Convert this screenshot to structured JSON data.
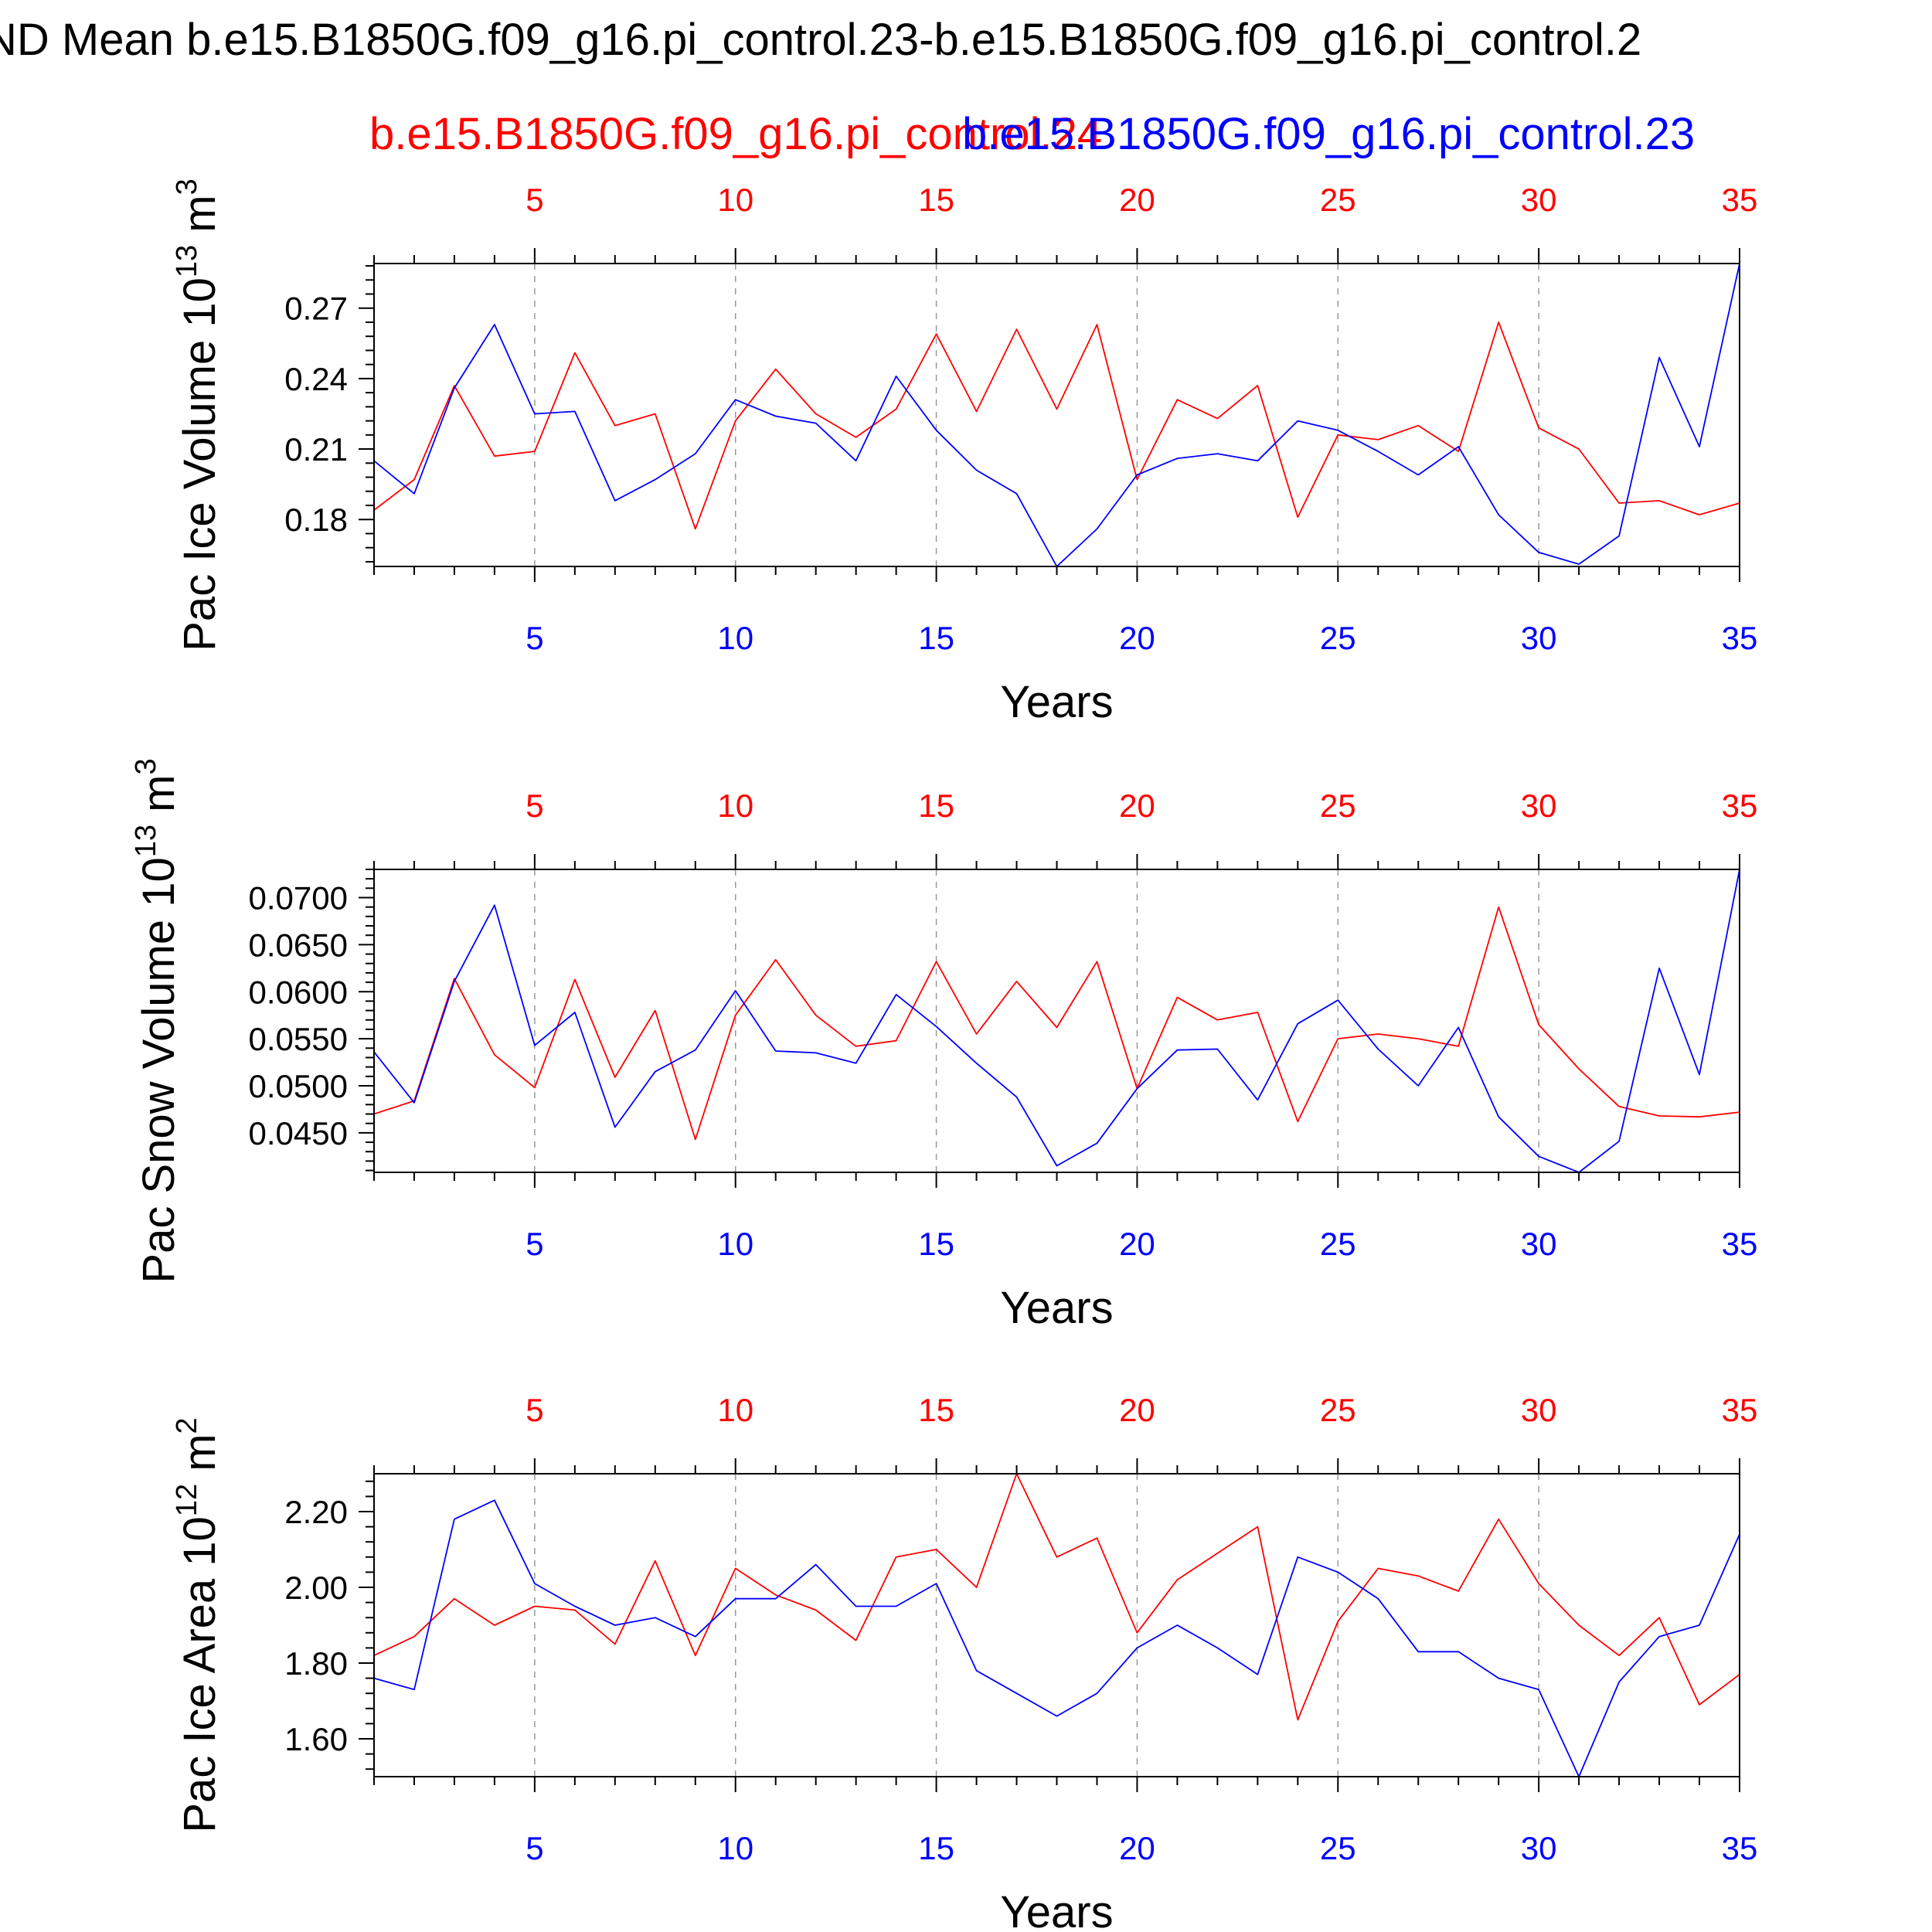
{
  "title": "ND Mean b.e15.B1850G.f09_g16.pi_control.23-b.e15.B1850G.f09_g16.pi_control.2",
  "legend": [
    {
      "name": "b.e15.B1850G.f09_g16.pi_control.24",
      "color": "#ff0000"
    },
    {
      "name": "b.e15.B1850G.f09_g16.pi_control.23",
      "color": "#0000ff"
    }
  ],
  "chart_data": [
    {
      "type": "line",
      "ylabel": "Pac Ice Volume 10",
      "ylabel_sup": "13",
      "ylabel_unit": "m",
      "ylabel_unit_sup": "3",
      "xlabel": "Years",
      "x": [
        1,
        2,
        3,
        4,
        5,
        6,
        7,
        8,
        9,
        10,
        11,
        12,
        13,
        14,
        15,
        16,
        17,
        18,
        19,
        20,
        21,
        22,
        23,
        24,
        25,
        26,
        27,
        28,
        29,
        30,
        31,
        32,
        33,
        34,
        35
      ],
      "xlim": [
        1,
        35
      ],
      "xticks": [
        5,
        10,
        15,
        20,
        25,
        30,
        35
      ],
      "ylim": [
        0.16,
        0.289
      ],
      "yticks": [
        0.18,
        0.21,
        0.24,
        0.27
      ],
      "ytick_labels": [
        "0.18",
        "0.21",
        "0.24",
        "0.27"
      ],
      "series": [
        {
          "color": "#ff0000",
          "values": [
            0.184,
            0.197,
            0.237,
            0.207,
            0.209,
            0.251,
            0.22,
            0.225,
            0.176,
            0.222,
            0.244,
            0.225,
            0.215,
            0.227,
            0.259,
            0.226,
            0.261,
            0.227,
            0.263,
            0.197,
            0.231,
            0.223,
            0.237,
            0.181,
            0.216,
            0.214,
            0.22,
            0.209,
            0.264,
            0.219,
            0.21,
            0.187,
            0.188,
            0.182,
            0.187
          ]
        },
        {
          "color": "#0000ff",
          "values": [
            0.205,
            0.191,
            0.236,
            0.263,
            0.225,
            0.226,
            0.188,
            0.197,
            0.208,
            0.231,
            0.224,
            0.221,
            0.205,
            0.241,
            0.218,
            0.201,
            0.191,
            0.16,
            0.176,
            0.199,
            0.206,
            0.208,
            0.205,
            0.222,
            0.218,
            0.209,
            0.199,
            0.211,
            0.182,
            0.166,
            0.161,
            0.173,
            0.249,
            0.211,
            0.289
          ]
        }
      ]
    },
    {
      "type": "line",
      "ylabel": "Pac Snow Volume 10",
      "ylabel_sup": "13",
      "ylabel_unit": "m",
      "ylabel_unit_sup": "3",
      "xlabel": "Years",
      "x": [
        1,
        2,
        3,
        4,
        5,
        6,
        7,
        8,
        9,
        10,
        11,
        12,
        13,
        14,
        15,
        16,
        17,
        18,
        19,
        20,
        21,
        22,
        23,
        24,
        25,
        26,
        27,
        28,
        29,
        30,
        31,
        32,
        33,
        34,
        35
      ],
      "xlim": [
        1,
        35
      ],
      "xticks": [
        5,
        10,
        15,
        20,
        25,
        30,
        35
      ],
      "ylim": [
        0.0408,
        0.073
      ],
      "yticks": [
        0.045,
        0.05,
        0.055,
        0.06,
        0.065,
        0.07
      ],
      "ytick_labels": [
        "0.0450",
        "0.0500",
        "0.0550",
        "0.0600",
        "0.0650",
        "0.0700"
      ],
      "series": [
        {
          "color": "#ff0000",
          "values": [
            0.047,
            0.0484,
            0.0614,
            0.0533,
            0.0498,
            0.0613,
            0.0509,
            0.058,
            0.0443,
            0.0575,
            0.0634,
            0.0575,
            0.0542,
            0.0548,
            0.0632,
            0.0555,
            0.0611,
            0.0562,
            0.0632,
            0.0497,
            0.0594,
            0.057,
            0.0578,
            0.0462,
            0.055,
            0.0555,
            0.055,
            0.0542,
            0.069,
            0.0565,
            0.0518,
            0.0478,
            0.0468,
            0.0467,
            0.0472
          ]
        },
        {
          "color": "#0000ff",
          "values": [
            0.0536,
            0.0482,
            0.0611,
            0.0692,
            0.0543,
            0.0578,
            0.0456,
            0.0515,
            0.0538,
            0.0601,
            0.0537,
            0.0535,
            0.0524,
            0.0597,
            0.0563,
            0.0524,
            0.0488,
            0.0415,
            0.0439,
            0.0497,
            0.0538,
            0.0539,
            0.0485,
            0.0566,
            0.0591,
            0.0539,
            0.05,
            0.0562,
            0.0467,
            0.0425,
            0.0408,
            0.0441,
            0.0625,
            0.0512,
            0.073
          ]
        }
      ]
    },
    {
      "type": "line",
      "ylabel": "Pac Ice Area 10",
      "ylabel_sup": "12",
      "ylabel_unit": "m",
      "ylabel_unit_sup": "2",
      "xlabel": "Years",
      "x": [
        1,
        2,
        3,
        4,
        5,
        6,
        7,
        8,
        9,
        10,
        11,
        12,
        13,
        14,
        15,
        16,
        17,
        18,
        19,
        20,
        21,
        22,
        23,
        24,
        25,
        26,
        27,
        28,
        29,
        30,
        31,
        32,
        33,
        34,
        35
      ],
      "xlim": [
        1,
        35
      ],
      "xticks": [
        5,
        10,
        15,
        20,
        25,
        30,
        35
      ],
      "ylim": [
        1.5,
        2.3
      ],
      "yticks": [
        1.6,
        1.8,
        2.0,
        2.2
      ],
      "ytick_labels": [
        "1.60",
        "1.80",
        "2.00",
        "2.20"
      ],
      "series": [
        {
          "color": "#ff0000",
          "values": [
            1.82,
            1.87,
            1.97,
            1.9,
            1.95,
            1.94,
            1.85,
            2.07,
            1.82,
            2.05,
            1.98,
            1.94,
            1.86,
            2.08,
            2.1,
            2.0,
            2.3,
            2.08,
            2.13,
            1.88,
            2.02,
            2.09,
            2.16,
            1.65,
            1.91,
            2.05,
            2.03,
            1.99,
            2.18,
            2.01,
            1.9,
            1.82,
            1.92,
            1.69,
            1.77
          ]
        },
        {
          "color": "#0000ff",
          "values": [
            1.76,
            1.73,
            2.18,
            2.23,
            2.01,
            1.95,
            1.9,
            1.92,
            1.87,
            1.97,
            1.97,
            2.06,
            1.95,
            1.95,
            2.01,
            1.78,
            1.72,
            1.66,
            1.72,
            1.84,
            1.9,
            1.84,
            1.77,
            2.08,
            2.04,
            1.97,
            1.83,
            1.83,
            1.76,
            1.73,
            1.5,
            1.75,
            1.87,
            1.9,
            2.14
          ]
        }
      ]
    }
  ]
}
